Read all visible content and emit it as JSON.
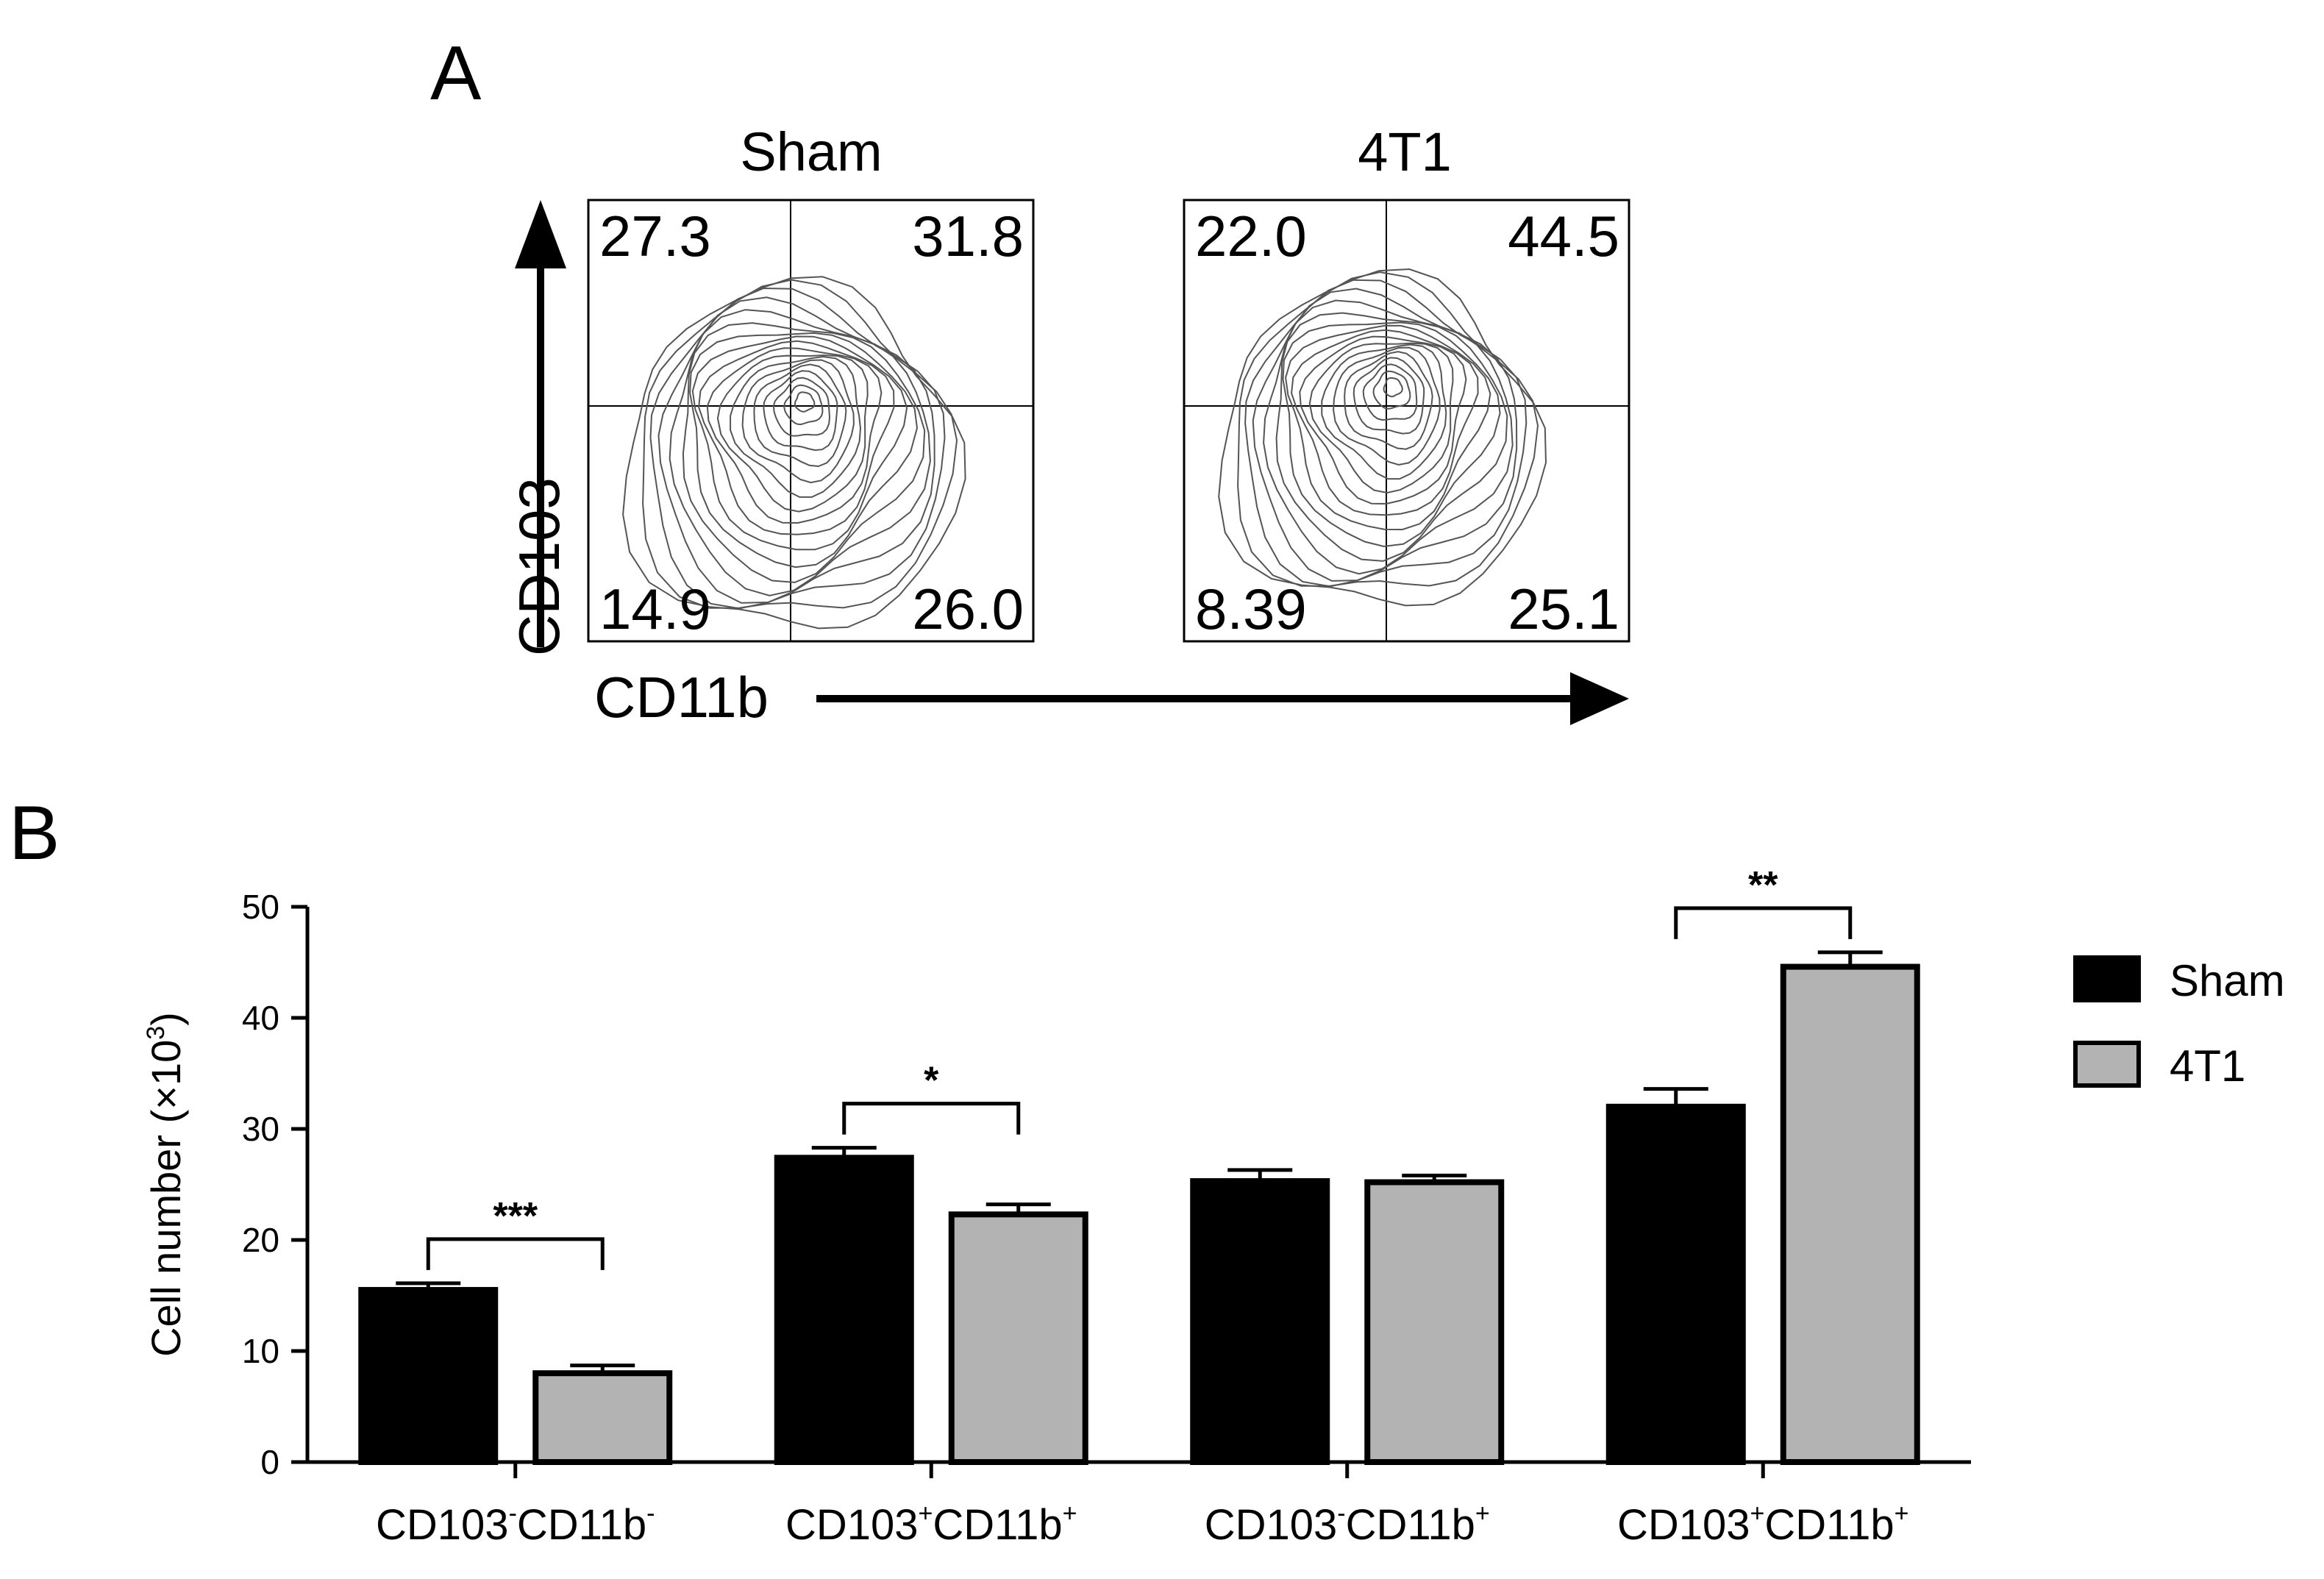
{
  "panels": {
    "a": {
      "letter": "A"
    },
    "b": {
      "letter": "B"
    }
  },
  "flow": {
    "x_axis_label": "CD11b",
    "y_axis_label": "CD103",
    "plots": [
      {
        "title": "Sham",
        "quadrants": {
          "ul": "27.3",
          "ur": "31.8",
          "ll": "14.9",
          "lr": "26.0"
        }
      },
      {
        "title": "4T1",
        "quadrants": {
          "ul": "22.0",
          "ur": "44.5",
          "ll": "8.39",
          "lr": "25.1"
        }
      }
    ]
  },
  "chart_data": {
    "type": "bar",
    "categories": [
      {
        "parts": [
          {
            "t": "CD103"
          },
          {
            "t": "-",
            "sup": true
          },
          {
            "t": "CD11b"
          },
          {
            "t": "-",
            "sup": true
          }
        ]
      },
      {
        "parts": [
          {
            "t": "CD103"
          },
          {
            "t": "+",
            "sup": true
          },
          {
            "t": "CD11b"
          },
          {
            "t": "+",
            "sup": true
          }
        ]
      },
      {
        "parts": [
          {
            "t": "CD103"
          },
          {
            "t": "-",
            "sup": true
          },
          {
            "t": "CD11b"
          },
          {
            "t": "+",
            "sup": true
          }
        ]
      },
      {
        "parts": [
          {
            "t": "CD103"
          },
          {
            "t": "+",
            "sup": true
          },
          {
            "t": "CD11b"
          },
          {
            "t": "+",
            "sup": true
          }
        ]
      }
    ],
    "series": [
      {
        "name": "Sham",
        "values": [
          15.5,
          27.4,
          25.3,
          32.0
        ],
        "errors": [
          0.6,
          0.9,
          1.0,
          1.6
        ],
        "color": "#000000"
      },
      {
        "name": "4T1",
        "values": [
          8.0,
          22.3,
          25.2,
          44.6
        ],
        "errors": [
          0.7,
          0.9,
          0.6,
          1.3
        ],
        "color": "#b3b3b3"
      }
    ],
    "y_label": {
      "main": "Cell number (×10",
      "sup": "3",
      "tail": ")"
    },
    "ylim": [
      0,
      50
    ],
    "yticks": [
      0,
      10,
      20,
      30,
      40,
      50
    ],
    "significance": [
      "***",
      "*",
      "",
      "**"
    ],
    "legend_position": "right"
  }
}
